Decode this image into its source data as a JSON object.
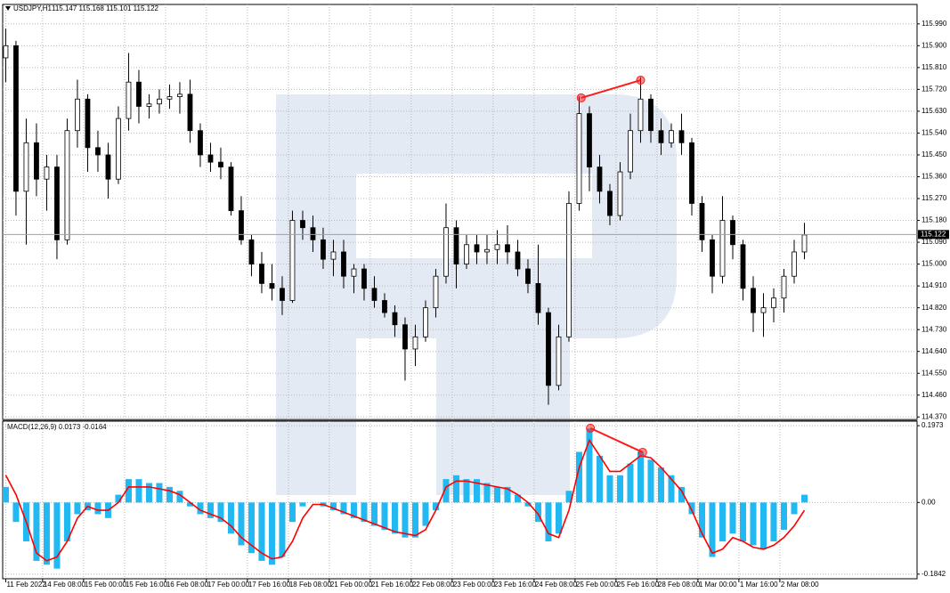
{
  "chart_data": [
    {
      "type": "candlestick",
      "title": "USDJPY,H1",
      "subtitle": "115.147 115.168 115.101 115.122",
      "color": "#000000",
      "grid": true,
      "open": [
        115.85,
        115.9,
        115.3,
        115.5,
        115.35,
        115.4,
        115.1,
        115.55,
        115.68,
        115.48,
        115.45,
        115.35,
        115.6,
        115.75,
        115.65,
        115.66,
        115.68,
        115.69,
        115.7,
        115.55,
        115.45,
        115.42,
        115.4,
        115.22,
        115.1,
        115.0,
        114.92,
        114.9,
        114.85,
        115.18,
        115.15,
        115.1,
        115.02,
        115.05,
        114.95,
        114.98,
        114.9,
        114.85,
        114.8,
        114.75,
        114.65,
        114.7,
        114.82,
        114.95,
        115.15,
        115.0,
        115.08,
        115.05,
        115.06,
        115.08,
        115.05,
        114.98,
        114.92,
        114.8,
        114.5,
        114.7,
        115.25,
        115.62,
        115.4,
        115.3,
        115.2,
        115.38,
        115.55,
        115.68,
        115.55,
        115.5,
        115.55,
        115.5,
        115.25,
        115.1,
        114.95,
        115.18,
        115.08,
        114.9,
        114.8,
        114.82,
        114.86,
        114.95,
        115.05
      ],
      "high": [
        115.97,
        115.92,
        115.6,
        115.58,
        115.45,
        115.45,
        115.6,
        115.76,
        115.7,
        115.55,
        115.5,
        115.65,
        115.87,
        115.8,
        115.7,
        115.72,
        115.74,
        115.75,
        115.76,
        115.58,
        115.5,
        115.48,
        115.42,
        115.28,
        115.12,
        115.05,
        115.0,
        114.95,
        115.22,
        115.22,
        115.2,
        115.15,
        115.1,
        115.1,
        115.0,
        115.0,
        114.95,
        114.88,
        114.83,
        114.78,
        114.75,
        114.85,
        114.98,
        115.25,
        115.18,
        115.12,
        115.12,
        115.12,
        115.14,
        115.16,
        115.1,
        115.02,
        115.08,
        114.82,
        114.75,
        115.3,
        115.69,
        115.65,
        115.45,
        115.33,
        115.42,
        115.62,
        115.77,
        115.7,
        115.6,
        115.58,
        115.62,
        115.52,
        115.28,
        115.12,
        115.28,
        115.2,
        115.1,
        114.95,
        114.88,
        114.9,
        114.98,
        115.1,
        115.17
      ],
      "low": [
        115.75,
        115.2,
        115.08,
        115.28,
        115.22,
        115.02,
        115.08,
        115.48,
        115.38,
        115.38,
        115.27,
        115.33,
        115.55,
        115.58,
        115.6,
        115.62,
        115.64,
        115.62,
        115.5,
        115.4,
        115.38,
        115.35,
        115.2,
        115.08,
        114.95,
        114.88,
        114.85,
        114.79,
        114.84,
        115.1,
        115.05,
        114.98,
        114.95,
        114.9,
        114.88,
        114.85,
        114.82,
        114.78,
        114.7,
        114.52,
        114.58,
        114.68,
        114.78,
        114.92,
        114.9,
        114.98,
        115.0,
        115.0,
        115.0,
        115.0,
        114.95,
        114.88,
        114.75,
        114.42,
        114.48,
        114.68,
        115.22,
        115.3,
        115.25,
        115.16,
        115.18,
        115.35,
        115.5,
        115.5,
        115.45,
        115.48,
        115.45,
        115.2,
        115.05,
        114.88,
        114.92,
        115.02,
        114.85,
        114.72,
        114.7,
        114.76,
        114.8,
        114.92,
        115.02
      ],
      "close": [
        115.9,
        115.3,
        115.5,
        115.35,
        115.4,
        115.1,
        115.55,
        115.68,
        115.48,
        115.45,
        115.35,
        115.6,
        115.75,
        115.65,
        115.66,
        115.68,
        115.69,
        115.7,
        115.55,
        115.45,
        115.42,
        115.4,
        115.22,
        115.1,
        115.0,
        114.92,
        114.9,
        114.85,
        115.18,
        115.15,
        115.1,
        115.02,
        115.05,
        114.95,
        114.98,
        114.9,
        114.85,
        114.8,
        114.75,
        114.65,
        114.7,
        114.82,
        114.95,
        115.15,
        115.0,
        115.08,
        115.05,
        115.06,
        115.08,
        115.05,
        114.98,
        114.92,
        114.8,
        114.5,
        114.7,
        115.25,
        115.62,
        115.4,
        115.3,
        115.2,
        115.38,
        115.55,
        115.68,
        115.55,
        115.5,
        115.55,
        115.5,
        115.25,
        115.1,
        114.95,
        115.18,
        115.08,
        114.9,
        114.8,
        114.82,
        114.86,
        114.95,
        115.05,
        115.12
      ],
      "last_price": 115.122,
      "xlim": [
        -0.3,
        89
      ],
      "ylim": [
        114.36,
        116.07
      ],
      "yticks": [
        {
          "value": 115.99,
          "label": "115.990"
        },
        {
          "value": 115.9,
          "label": "115.900"
        },
        {
          "value": 115.81,
          "label": "115.810"
        },
        {
          "value": 115.72,
          "label": "115.720"
        },
        {
          "value": 115.63,
          "label": "115.630"
        },
        {
          "value": 115.54,
          "label": "115.540"
        },
        {
          "value": 115.45,
          "label": "115.450"
        },
        {
          "value": 115.36,
          "label": "115.360"
        },
        {
          "value": 115.27,
          "label": "115.270"
        },
        {
          "value": 115.18,
          "label": "115.180"
        },
        {
          "value": 115.09,
          "label": "115.090"
        },
        {
          "value": 115,
          "label": "115.000"
        },
        {
          "value": 114.91,
          "label": "114.910"
        },
        {
          "value": 114.82,
          "label": "114.820"
        },
        {
          "value": 114.73,
          "label": "114.730"
        },
        {
          "value": 114.64,
          "label": "114.640"
        },
        {
          "value": 114.55,
          "label": "114.550"
        },
        {
          "value": 114.46,
          "label": "114.460"
        },
        {
          "value": 114.37,
          "label": "114.370"
        }
      ],
      "xticks": [
        {
          "value": 0,
          "label": "11 Feb 2022"
        },
        {
          "value": 3.6,
          "label": "14 Feb 08:00"
        },
        {
          "value": 7.6,
          "label": "15 Feb 00:00"
        },
        {
          "value": 11.6,
          "label": "15 Feb 16:00"
        },
        {
          "value": 15.6,
          "label": "16 Feb 08:00"
        },
        {
          "value": 19.6,
          "label": "17 Feb 00:00"
        },
        {
          "value": 23.6,
          "label": "17 Feb 16:00"
        },
        {
          "value": 27.6,
          "label": "18 Feb 08:00"
        },
        {
          "value": 31.6,
          "label": "21 Feb 00:00"
        },
        {
          "value": 35.6,
          "label": "21 Feb 16:00"
        },
        {
          "value": 39.6,
          "label": "22 Feb 08:00"
        },
        {
          "value": 43.6,
          "label": "23 Feb 00:00"
        },
        {
          "value": 47.6,
          "label": "23 Feb 16:00"
        },
        {
          "value": 51.6,
          "label": "24 Feb 08:00"
        },
        {
          "value": 55.6,
          "label": "25 Feb 00:00"
        },
        {
          "value": 59.6,
          "label": "25 Feb 16:00"
        },
        {
          "value": 63.6,
          "label": "28 Feb 08:00"
        },
        {
          "value": 67.6,
          "label": "1 Mar 00:00"
        },
        {
          "value": 71.6,
          "label": "1 Mar 16:00"
        },
        {
          "value": 75.6,
          "label": "2 Mar 08:00"
        }
      ],
      "divergence": {
        "color": "#ff1a1a",
        "points": [
          {
            "x": 56.2,
            "y": 115.685
          },
          {
            "x": 62,
            "y": 115.758
          }
        ]
      }
    },
    {
      "type": "macd",
      "title": "MACD(12,26,9) 0.0173 -0.0164",
      "grid": true,
      "xlim": [
        -0.3,
        89
      ],
      "ylim": [
        -0.196,
        0.209
      ],
      "yticks": [
        0.1973,
        {
          "value": 0,
          "label": "0.00"
        },
        -0.1842
      ],
      "histogram": {
        "color": "#22b8f2",
        "values": [
          0.04,
          -0.05,
          -0.1,
          -0.15,
          -0.16,
          -0.17,
          -0.1,
          -0.03,
          -0.02,
          -0.03,
          -0.04,
          0.02,
          0.06,
          0.06,
          0.05,
          0.05,
          0.04,
          0.03,
          -0.01,
          -0.03,
          -0.04,
          -0.05,
          -0.08,
          -0.11,
          -0.13,
          -0.15,
          -0.16,
          -0.14,
          -0.05,
          -0.01,
          0.0,
          -0.01,
          -0.02,
          -0.03,
          -0.04,
          -0.05,
          -0.06,
          -0.07,
          -0.08,
          -0.09,
          -0.09,
          -0.06,
          -0.02,
          0.06,
          0.07,
          0.06,
          0.06,
          0.05,
          0.04,
          0.04,
          0.02,
          -0.01,
          -0.05,
          -0.1,
          -0.08,
          0.03,
          0.13,
          0.19,
          0.12,
          0.07,
          0.07,
          0.1,
          0.13,
          0.11,
          0.09,
          0.07,
          0.04,
          -0.03,
          -0.09,
          -0.14,
          -0.1,
          -0.08,
          -0.1,
          -0.11,
          -0.12,
          -0.1,
          -0.07,
          -0.03,
          0.02
        ]
      },
      "signal": {
        "color": "#ff0000",
        "values": [
          0.07,
          0.02,
          -0.05,
          -0.13,
          -0.15,
          -0.14,
          -0.1,
          -0.04,
          -0.01,
          -0.02,
          -0.02,
          0.0,
          0.04,
          0.04,
          0.04,
          0.035,
          0.03,
          0.02,
          0.0,
          -0.02,
          -0.03,
          -0.04,
          -0.06,
          -0.09,
          -0.11,
          -0.13,
          -0.145,
          -0.14,
          -0.1,
          -0.04,
          -0.005,
          -0.005,
          -0.015,
          -0.025,
          -0.035,
          -0.045,
          -0.055,
          -0.065,
          -0.075,
          -0.08,
          -0.085,
          -0.07,
          -0.02,
          0.04,
          0.055,
          0.055,
          0.05,
          0.045,
          0.04,
          0.035,
          0.02,
          0.0,
          -0.03,
          -0.08,
          -0.09,
          -0.02,
          0.09,
          0.16,
          0.12,
          0.08,
          0.08,
          0.1,
          0.12,
          0.115,
          0.09,
          0.06,
          0.03,
          -0.02,
          -0.08,
          -0.13,
          -0.12,
          -0.09,
          -0.1,
          -0.115,
          -0.12,
          -0.11,
          -0.09,
          -0.06,
          -0.02
        ]
      },
      "divergence": {
        "color": "#ff1a1a",
        "points": [
          {
            "x": 57.1,
            "y": 0.191
          },
          {
            "x": 62.2,
            "y": 0.129
          }
        ]
      }
    }
  ]
}
